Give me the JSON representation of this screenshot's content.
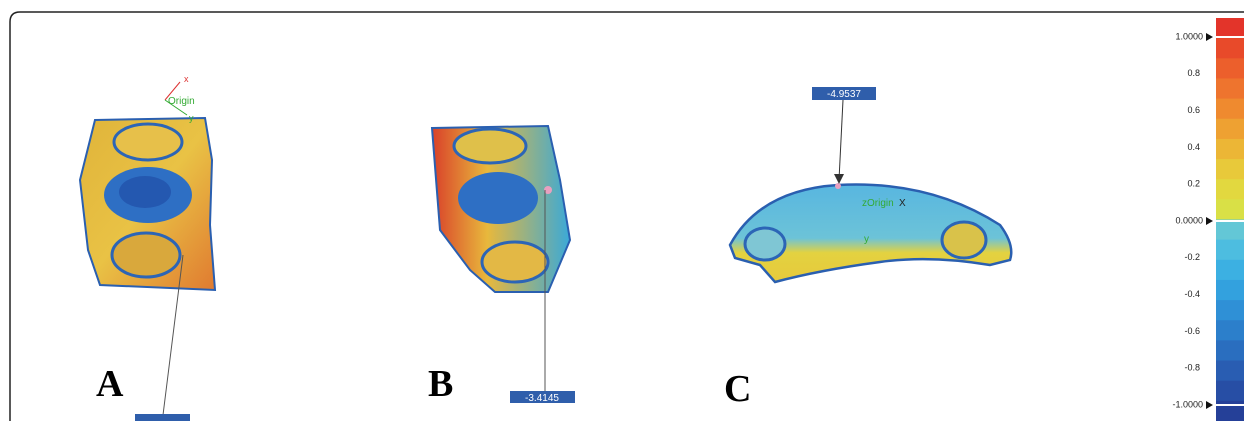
{
  "panels": [
    {
      "label": "A",
      "axes": {
        "origin": "Origin",
        "x": "x",
        "y": "y"
      }
    },
    {
      "label": "B",
      "callout": "-3.4145"
    },
    {
      "label": "C",
      "callout": "-4.9537",
      "axes": {
        "origin": "zOrigin",
        "x": "X",
        "y": "y"
      }
    }
  ],
  "colorbar": {
    "labels": [
      "1.0000",
      "0.8",
      "0.6",
      "0.4",
      "0.2",
      "0.0000",
      "-0.2",
      "-0.4",
      "-0.6",
      "-0.8",
      "-1.0000"
    ]
  }
}
